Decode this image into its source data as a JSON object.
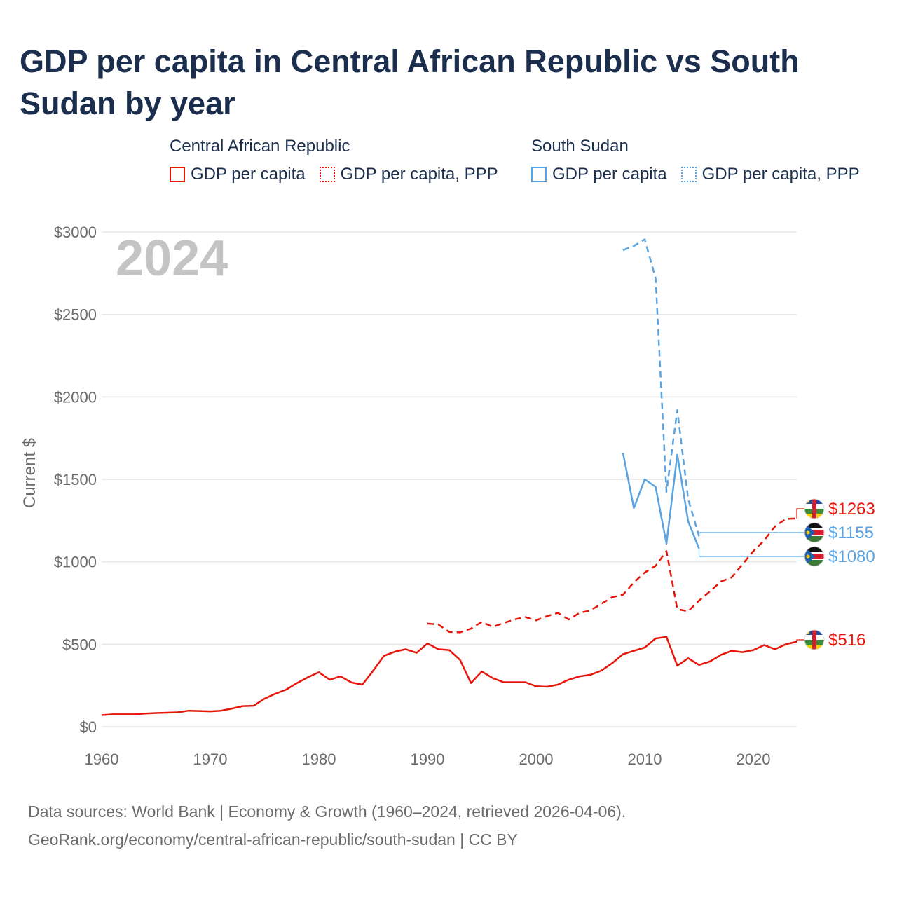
{
  "title": "GDP per capita in Central African Republic vs South Sudan by year",
  "legend": {
    "groups": [
      {
        "country": "Central African Republic",
        "color": "#e8150b",
        "items": [
          {
            "label": "GDP per capita",
            "style": "solid"
          },
          {
            "label": "GDP per capita, PPP",
            "style": "dotted"
          }
        ]
      },
      {
        "country": "South Sudan",
        "color": "#5aa3e0",
        "items": [
          {
            "label": "GDP per capita",
            "style": "solid"
          },
          {
            "label": "GDP per capita, PPP",
            "style": "dotted"
          }
        ]
      }
    ]
  },
  "footer": {
    "line1": "Data sources: World Bank | Economy & Growth (1960–2024, retrieved 2026-04-06).",
    "line2": "GeoRank.org/economy/central-african-republic/south-sudan | CC BY"
  },
  "chart_data": {
    "type": "line",
    "title": "GDP per capita in Central African Republic vs South Sudan by year",
    "watermark_year": "2024",
    "xlabel": "",
    "ylabel": "Current $",
    "xlim": [
      1960,
      2024
    ],
    "ylim": [
      0,
      3000
    ],
    "x_ticks": [
      1960,
      1970,
      1980,
      1990,
      2000,
      2010,
      2020
    ],
    "y_ticks": [
      0,
      500,
      1000,
      1500,
      2000,
      2500,
      3000
    ],
    "y_tick_labels": [
      "$0",
      "$500",
      "$1000",
      "$1500",
      "$2000",
      "$2500",
      "$3000"
    ],
    "grid": true,
    "series": [
      {
        "name": "Central African Republic GDP per capita",
        "color": "#e8150b",
        "dash": "solid",
        "x": [
          1960,
          1961,
          1962,
          1963,
          1964,
          1965,
          1966,
          1967,
          1968,
          1969,
          1970,
          1971,
          1972,
          1973,
          1974,
          1975,
          1976,
          1977,
          1978,
          1979,
          1980,
          1981,
          1982,
          1983,
          1984,
          1985,
          1986,
          1987,
          1988,
          1989,
          1990,
          1991,
          1992,
          1993,
          1994,
          1995,
          1996,
          1997,
          1998,
          1999,
          2000,
          2001,
          2002,
          2003,
          2004,
          2005,
          2006,
          2007,
          2008,
          2009,
          2010,
          2011,
          2012,
          2013,
          2014,
          2015,
          2016,
          2017,
          2018,
          2019,
          2020,
          2021,
          2022,
          2023,
          2024
        ],
        "y": [
          70,
          75,
          75,
          75,
          80,
          83,
          85,
          87,
          97,
          95,
          93,
          97,
          110,
          125,
          127,
          170,
          200,
          225,
          265,
          300,
          330,
          285,
          305,
          268,
          255,
          340,
          430,
          455,
          470,
          448,
          505,
          470,
          465,
          405,
          265,
          335,
          295,
          270,
          270,
          270,
          245,
          242,
          255,
          285,
          305,
          315,
          340,
          385,
          440,
          460,
          480,
          535,
          545,
          370,
          415,
          375,
          395,
          435,
          460,
          452,
          465,
          495,
          470,
          500,
          516
        ]
      },
      {
        "name": "Central African Republic GDP per capita, PPP",
        "color": "#e8150b",
        "dash": "dashed",
        "x": [
          1990,
          1991,
          1992,
          1993,
          1994,
          1995,
          1996,
          1997,
          1998,
          1999,
          2000,
          2001,
          2002,
          2003,
          2004,
          2005,
          2006,
          2007,
          2008,
          2009,
          2010,
          2011,
          2012,
          2013,
          2014,
          2015,
          2016,
          2017,
          2018,
          2019,
          2020,
          2021,
          2022,
          2023,
          2024
        ],
        "y": [
          625,
          620,
          575,
          572,
          595,
          635,
          605,
          628,
          650,
          665,
          645,
          670,
          690,
          650,
          690,
          705,
          745,
          785,
          800,
          875,
          935,
          975,
          1065,
          712,
          700,
          765,
          820,
          880,
          905,
          985,
          1065,
          1130,
          1215,
          1260,
          1263
        ]
      },
      {
        "name": "South Sudan GDP per capita",
        "color": "#5aa3e0",
        "dash": "solid",
        "x": [
          2008,
          2009,
          2010,
          2011,
          2012,
          2013,
          2014,
          2015
        ],
        "y": [
          1660,
          1325,
          1500,
          1455,
          1110,
          1650,
          1245,
          1080
        ]
      },
      {
        "name": "South Sudan GDP per capita, PPP",
        "color": "#5aa3e0",
        "dash": "dashed",
        "x": [
          2008,
          2009,
          2010,
          2011,
          2012,
          2013,
          2014,
          2015
        ],
        "y": [
          2890,
          2915,
          2955,
          2720,
          1425,
          1920,
          1380,
          1155
        ]
      }
    ],
    "end_labels": [
      {
        "text": "$1263",
        "value": 1263,
        "color": "#e8150b",
        "country": "Central African Republic"
      },
      {
        "text": "$1155",
        "value": 1155,
        "color": "#5aa3e0",
        "country": "South Sudan"
      },
      {
        "text": "$1080",
        "value": 1080,
        "color": "#5aa3e0",
        "country": "South Sudan"
      },
      {
        "text": "$516",
        "value": 516,
        "color": "#e8150b",
        "country": "Central African Republic"
      }
    ]
  }
}
